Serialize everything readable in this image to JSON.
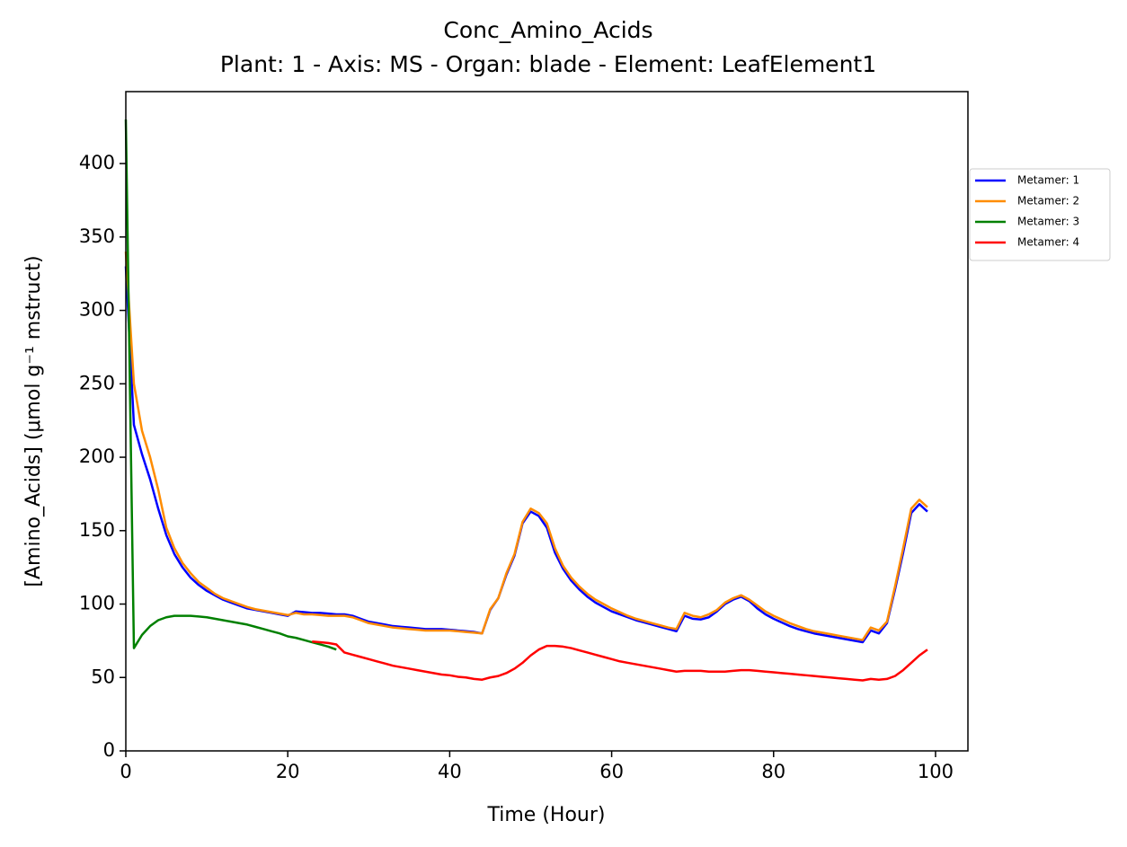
{
  "chart_data": {
    "type": "line",
    "title": "Conc_Amino_Acids",
    "subtitle": "Plant: 1 - Axis: MS - Organ: blade - Element: LeafElement1",
    "xlabel": "Time (Hour)",
    "ylabel": "[Amino_Acids] (μmol g⁻¹ mstruct)",
    "xlim": [
      0,
      104
    ],
    "ylim": [
      0,
      449
    ],
    "xticks": [
      0,
      20,
      40,
      60,
      80,
      100
    ],
    "yticks": [
      0,
      50,
      100,
      150,
      200,
      250,
      300,
      350,
      400
    ],
    "grid": false,
    "legend": "right",
    "x": [
      0,
      1,
      2,
      3,
      4,
      5,
      6,
      7,
      8,
      9,
      10,
      11,
      12,
      13,
      14,
      15,
      16,
      17,
      18,
      19,
      20,
      21,
      22,
      23,
      24,
      25,
      26,
      27,
      28,
      29,
      30,
      31,
      32,
      33,
      34,
      35,
      36,
      37,
      38,
      39,
      40,
      41,
      42,
      43,
      44,
      45,
      46,
      47,
      48,
      49,
      50,
      51,
      52,
      53,
      54,
      55,
      56,
      57,
      58,
      59,
      60,
      61,
      62,
      63,
      64,
      65,
      66,
      67,
      68,
      69,
      70,
      71,
      72,
      73,
      74,
      75,
      76,
      77,
      78,
      79,
      80,
      81,
      82,
      83,
      84,
      85,
      86,
      87,
      88,
      89,
      90,
      91,
      92,
      93,
      94,
      95,
      96,
      97,
      98,
      99
    ],
    "series": [
      {
        "name": "Metamer: 1",
        "color": "#0000ff",
        "values": [
          330,
          222,
          202,
          185,
          165,
          147,
          134,
          125,
          118,
          113,
          109,
          106,
          103,
          101,
          99,
          97,
          96,
          95,
          94,
          93,
          92,
          95,
          94.5,
          94,
          94,
          93.5,
          93,
          93,
          92,
          90,
          88,
          87,
          86,
          85,
          84.5,
          84,
          83.5,
          83,
          83,
          83,
          82.5,
          82,
          81.5,
          81,
          80,
          96,
          104,
          120,
          133,
          155,
          163,
          160,
          152,
          135,
          124,
          116,
          110,
          105,
          101,
          98,
          95,
          93,
          91,
          89,
          87.5,
          86,
          84.5,
          83,
          81.5,
          92,
          90,
          89.5,
          91,
          95,
          100,
          103,
          105,
          102,
          97,
          93,
          90,
          87.5,
          85,
          83,
          81.5,
          80,
          79,
          78,
          77,
          76,
          75,
          74,
          82,
          80,
          87,
          110,
          135,
          162,
          168,
          163
        ]
      },
      {
        "name": "Metamer: 2",
        "color": "#ff8c00",
        "values": [
          340,
          250,
          218,
          200,
          178,
          152,
          138,
          128,
          121,
          115,
          111,
          107,
          104,
          102,
          100,
          98,
          96.5,
          95.5,
          94.5,
          93.5,
          92.5,
          94,
          93,
          93,
          92.5,
          92,
          92,
          92,
          91,
          89,
          87,
          86,
          85,
          84,
          83.5,
          83,
          82.5,
          82,
          82,
          82,
          82,
          81.5,
          81,
          80.5,
          80,
          96.5,
          104,
          121,
          134,
          156,
          165,
          162,
          155,
          138,
          126,
          118,
          112,
          107,
          103,
          100,
          97,
          94.5,
          92,
          90,
          88.5,
          87,
          85.5,
          84,
          83,
          94,
          92,
          91,
          93,
          96,
          101,
          104,
          106,
          103,
          99,
          95,
          92,
          89.5,
          87,
          85,
          83,
          81.5,
          80.5,
          79.5,
          78.5,
          77.5,
          76.5,
          75.5,
          84,
          82,
          88,
          112,
          138,
          165,
          171,
          166
        ]
      },
      {
        "name": "Metamer: 3",
        "color": "#008000",
        "values": [
          430,
          70,
          79,
          85,
          89,
          91,
          92,
          92,
          92,
          91.5,
          91,
          90,
          89,
          88,
          87,
          86,
          84.5,
          83,
          81.5,
          80,
          78,
          77,
          75.5,
          74,
          72.5,
          71,
          69,
          null,
          null,
          null,
          null,
          null,
          null,
          null,
          null,
          null,
          null,
          null,
          null,
          null,
          null,
          null,
          null,
          null,
          null,
          null,
          null,
          null,
          null,
          null,
          null,
          null,
          null,
          null,
          null,
          null,
          null,
          null,
          null,
          null,
          null,
          null,
          null,
          null,
          null,
          null,
          null,
          null,
          null,
          null,
          null,
          null,
          null,
          null,
          null,
          null,
          null,
          null,
          null,
          null,
          null,
          null,
          null,
          null,
          null,
          null,
          null,
          null,
          null,
          null,
          null,
          null,
          null,
          null,
          null,
          null,
          null,
          null,
          null,
          null
        ]
      },
      {
        "name": "Metamer: 4",
        "color": "#ff0000",
        "values": [
          null,
          null,
          null,
          null,
          null,
          null,
          null,
          null,
          null,
          null,
          null,
          null,
          null,
          null,
          null,
          null,
          null,
          null,
          null,
          null,
          null,
          null,
          null,
          74.5,
          74,
          73.5,
          72.5,
          67,
          65.5,
          64,
          62.5,
          61,
          59.5,
          58,
          57,
          56,
          55,
          54,
          53,
          52,
          51.5,
          50.5,
          50,
          49,
          48.5,
          50,
          51,
          53,
          56,
          60,
          65,
          69,
          71.5,
          71.5,
          71,
          70,
          68.5,
          67,
          65.5,
          64,
          62.5,
          61,
          60,
          59,
          58,
          57,
          56,
          55,
          54,
          54.5,
          54.5,
          54.5,
          54,
          54,
          54,
          54.5,
          55,
          55,
          54.5,
          54,
          53.5,
          53,
          52.5,
          52,
          51.5,
          51,
          50.5,
          50,
          49.5,
          49,
          48.5,
          48,
          49,
          48.5,
          49,
          51,
          55,
          60,
          65,
          69
        ]
      }
    ]
  }
}
